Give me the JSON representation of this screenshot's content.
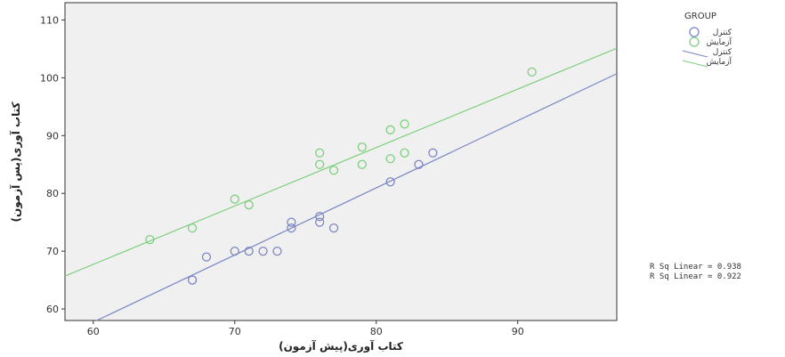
{
  "chart_data": {
    "type": "scatter",
    "xlabel": "کتاب آوری(پیش آزمون)",
    "ylabel": "کتاب آوری(پس آزمون)",
    "xlim": [
      58,
      97
    ],
    "ylim": [
      58,
      113
    ],
    "x_ticks": [
      60,
      70,
      80,
      90
    ],
    "y_ticks": [
      60,
      70,
      80,
      90,
      100,
      110
    ],
    "grid": false,
    "legend_title": "GROUP",
    "legend_position": "right",
    "series": [
      {
        "name": "کنترل",
        "color": "#7b86c4",
        "marker": "circle",
        "points": [
          [
            67,
            65
          ],
          [
            68,
            69
          ],
          [
            70,
            70
          ],
          [
            71,
            70
          ],
          [
            72,
            70
          ],
          [
            73,
            70
          ],
          [
            74,
            74
          ],
          [
            74,
            75
          ],
          [
            76,
            75
          ],
          [
            76,
            76
          ],
          [
            77,
            74
          ],
          [
            81,
            82
          ],
          [
            83,
            85
          ],
          [
            84,
            87
          ]
        ],
        "fit": {
          "slope": 1.162,
          "intercept": -12.0,
          "label": "کنترل"
        }
      },
      {
        "name": "آزمایش",
        "color": "#7fcf7f",
        "marker": "circle",
        "points": [
          [
            64,
            72
          ],
          [
            67,
            74
          ],
          [
            70,
            79
          ],
          [
            71,
            78
          ],
          [
            76,
            85
          ],
          [
            76,
            87
          ],
          [
            77,
            84
          ],
          [
            79,
            85
          ],
          [
            79,
            88
          ],
          [
            81,
            86
          ],
          [
            81,
            91
          ],
          [
            82,
            87
          ],
          [
            82,
            92
          ],
          [
            91,
            101
          ]
        ],
        "fit": {
          "slope": 1.011,
          "intercept": 7.05,
          "label": "آزمایش"
        }
      }
    ],
    "annotations": [
      "R Sq Linear = 0.938",
      "R Sq Linear = 0.922"
    ]
  }
}
